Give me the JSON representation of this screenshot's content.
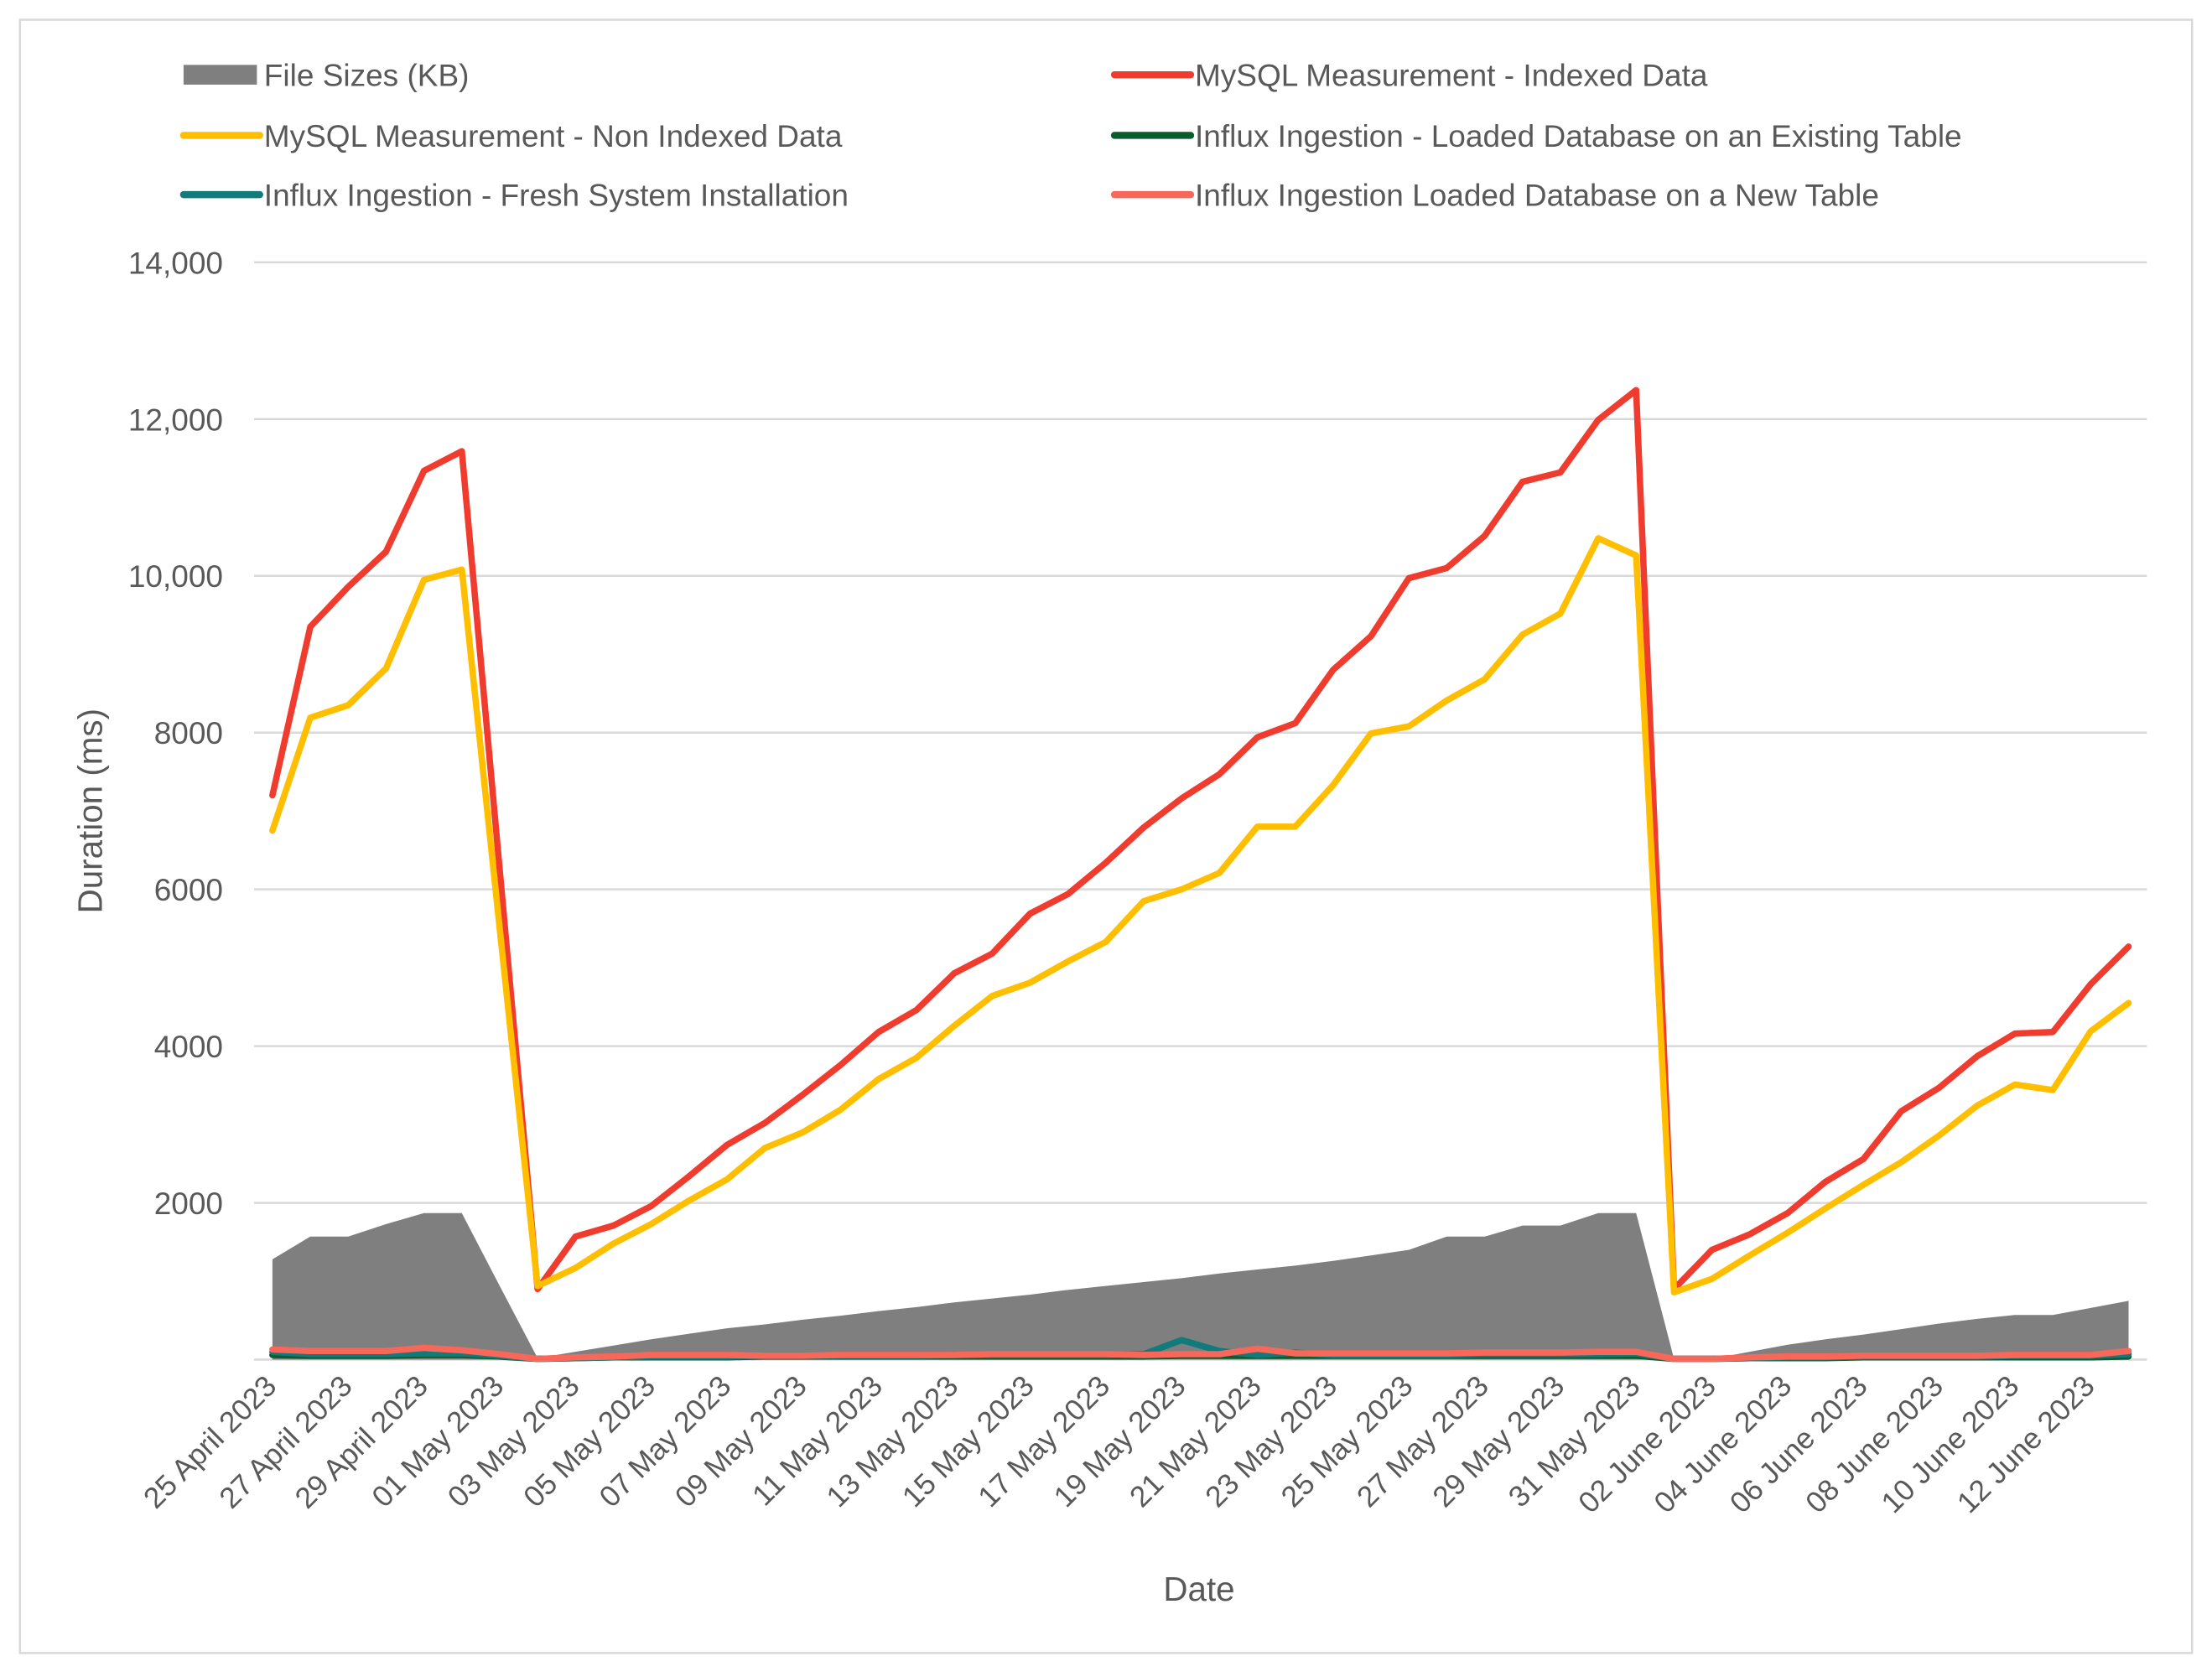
{
  "chart_data": {
    "type": "line",
    "x_label": "Date",
    "y_label": "Duration (ms)",
    "legend": "top",
    "grid": true,
    "ylim": [
      0,
      14000
    ],
    "yticks": [
      2000,
      4000,
      6000,
      8000,
      {
        "value": 10000,
        "label": "10,000"
      },
      {
        "value": 12000,
        "label": "12,000"
      },
      {
        "value": 14000,
        "label": "14,000"
      }
    ],
    "categories": [
      "25 April 2023",
      null,
      "27 April 2023",
      null,
      "29 April 2023",
      null,
      "01 May 2023",
      null,
      "03 May 2023",
      null,
      "05 May 2023",
      null,
      "07 May 2023",
      null,
      "09 May 2023",
      null,
      "11 May 2023",
      null,
      "13 May 2023",
      null,
      "15 May 2023",
      null,
      "17 May 2023",
      null,
      "19 May 2023",
      null,
      "21 May 2023",
      null,
      "23 May 2023",
      null,
      "25 May 2023",
      null,
      "27 May 2023",
      null,
      "29 May 2023",
      null,
      "31 May 2023",
      null,
      "02 June 2023",
      null,
      "04 June 2023",
      null,
      "06 June 2023",
      null,
      "08 June 2023",
      null,
      "10 June 2023",
      null,
      "12 June 2023",
      null
    ],
    "series": [
      {
        "name": "File Sizes (KB)",
        "type": "area",
        "color": "#7f7f7f",
        "values": [
          1280,
          1570,
          1570,
          1730,
          1870,
          1870,
          940,
          20,
          100,
          180,
          260,
          330,
          400,
          450,
          510,
          560,
          620,
          670,
          730,
          780,
          830,
          890,
          940,
          990,
          1040,
          1100,
          1150,
          1200,
          1260,
          1330,
          1400,
          1570,
          1570,
          1710,
          1710,
          1870,
          1870,
          10,
          10,
          100,
          190,
          260,
          320,
          390,
          460,
          520,
          570,
          570,
          660,
          750
        ]
      },
      {
        "name": "MySQL Measurement - Indexed Data",
        "type": "line",
        "color": "#f03c2e",
        "values": [
          7200,
          9350,
          9860,
          10310,
          11340,
          11590,
          6250,
          900,
          1570,
          1710,
          1960,
          2340,
          2740,
          3020,
          3380,
          3760,
          4180,
          4460,
          4930,
          5180,
          5690,
          5940,
          6340,
          6790,
          7160,
          7470,
          7940,
          8120,
          8800,
          9230,
          9970,
          10100,
          10510,
          11200,
          11320,
          11990,
          12370,
          900,
          1400,
          1600,
          1870,
          2270,
          2560,
          3170,
          3470,
          3870,
          4160,
          4180,
          4790,
          5270
        ]
      },
      {
        "name": "MySQL Measurement - Non Indexed Data",
        "type": "line",
        "color": "#ffbf00",
        "values": [
          6750,
          8190,
          8350,
          8820,
          9950,
          10080,
          5500,
          940,
          1170,
          1480,
          1730,
          2030,
          2300,
          2700,
          2900,
          3190,
          3580,
          3850,
          4260,
          4640,
          4810,
          5080,
          5330,
          5850,
          6000,
          6210,
          6800,
          6800,
          7330,
          7990,
          8080,
          8410,
          8680,
          9250,
          9520,
          10480,
          10260,
          860,
          1030,
          1330,
          1620,
          1930,
          2230,
          2520,
          2860,
          3240,
          3510,
          3440,
          4190,
          4550
        ]
      },
      {
        "name": "Influx Ingestion - Loaded Database on an Existing Table",
        "type": "line",
        "color": "#0a5c2c",
        "values": [
          60,
          50,
          50,
          50,
          60,
          60,
          40,
          10,
          20,
          30,
          30,
          30,
          30,
          40,
          40,
          40,
          40,
          40,
          40,
          40,
          40,
          40,
          40,
          40,
          50,
          50,
          50,
          50,
          50,
          50,
          50,
          50,
          50,
          50,
          50,
          50,
          50,
          10,
          10,
          20,
          20,
          20,
          30,
          30,
          30,
          30,
          30,
          30,
          30,
          40
        ]
      },
      {
        "name": "Influx Ingestion - Fresh System Installation",
        "type": "line",
        "color": "#117a7a",
        "values": [
          100,
          70,
          70,
          70,
          80,
          80,
          50,
          10,
          20,
          30,
          40,
          40,
          40,
          50,
          50,
          50,
          50,
          50,
          60,
          60,
          60,
          60,
          60,
          70,
          250,
          110,
          60,
          90,
          60,
          60,
          60,
          60,
          70,
          70,
          70,
          70,
          80,
          10,
          10,
          20,
          30,
          30,
          40,
          40,
          40,
          40,
          50,
          50,
          50,
          70
        ]
      },
      {
        "name": "Influx Ingestion Loaded Database on a New Table",
        "type": "line",
        "color": "#f7675a",
        "values": [
          130,
          110,
          110,
          110,
          150,
          120,
          70,
          10,
          30,
          40,
          60,
          60,
          60,
          50,
          50,
          60,
          60,
          60,
          60,
          70,
          70,
          70,
          70,
          60,
          70,
          70,
          140,
          80,
          80,
          80,
          80,
          80,
          90,
          90,
          90,
          100,
          100,
          10,
          10,
          30,
          40,
          40,
          50,
          50,
          50,
          50,
          60,
          60,
          60,
          110
        ]
      }
    ]
  }
}
